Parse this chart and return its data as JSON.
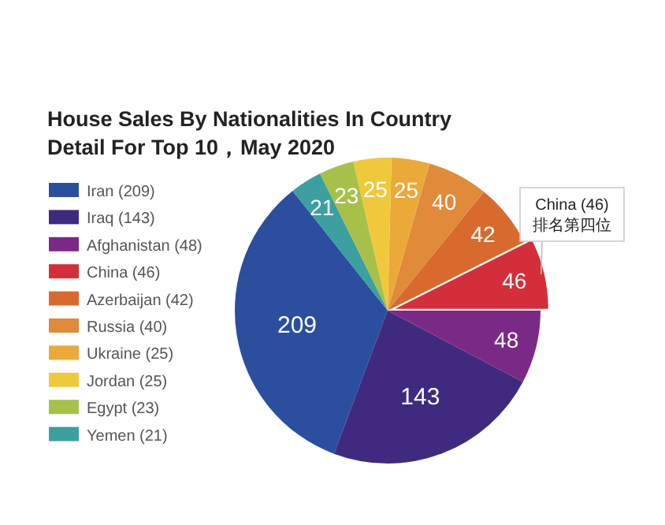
{
  "chart_data": {
    "type": "pie",
    "title": "House Sales By Nationalities In Country\nDetail For Top 10，May 2020",
    "categories": [
      "Iran (209)",
      "Iraq (143)",
      "Afghanistan (48)",
      "China (46)",
      "Azerbaijan (42)",
      "Russia (40)",
      "Ukraine (25)",
      "Jordan (25)",
      "Egypt (23)",
      "Yemen (21)"
    ],
    "values": [
      209,
      143,
      48,
      46,
      42,
      40,
      25,
      25,
      23,
      21
    ],
    "colors": [
      "#2b4f9e",
      "#3f2a80",
      "#7a2a86",
      "#d42e3a",
      "#d86a2e",
      "#e08a3a",
      "#eba93a",
      "#f0c93a",
      "#a7c04a",
      "#3c9fa0"
    ],
    "data_labels": true,
    "legend": "left",
    "annotations": [
      {
        "text": "China (46)\n排名第四位",
        "x": "China (46)"
      }
    ]
  }
}
